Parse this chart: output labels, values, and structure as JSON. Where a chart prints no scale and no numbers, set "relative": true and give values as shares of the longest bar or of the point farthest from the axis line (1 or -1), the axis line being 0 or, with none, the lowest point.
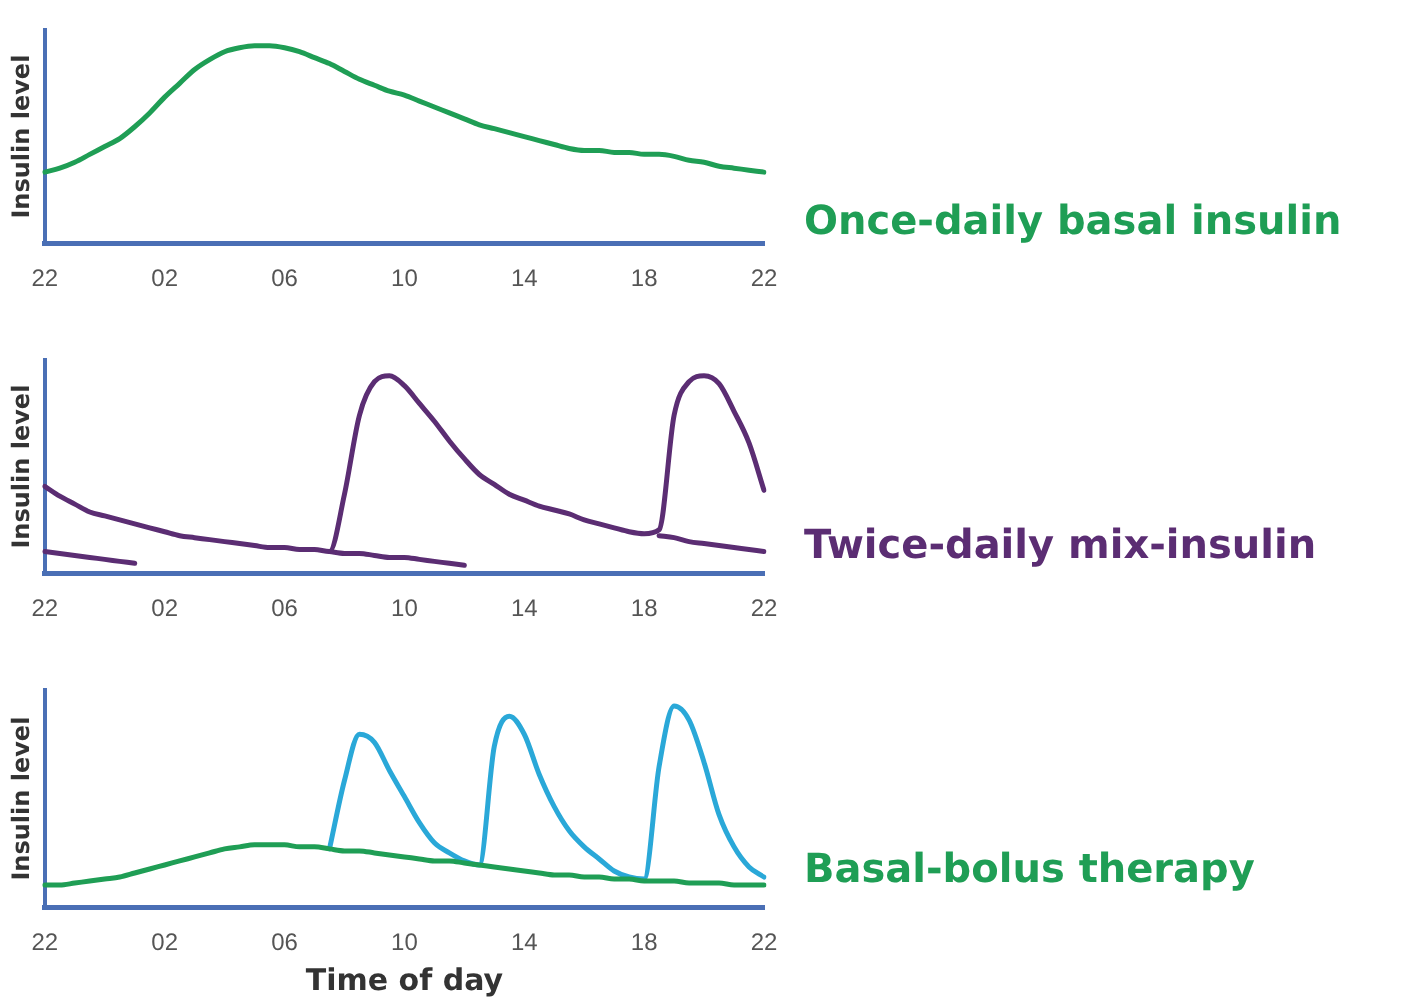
{
  "chart_data": [
    {
      "type": "line",
      "ylabel": "Insulin level",
      "relative": true,
      "legend": false,
      "grid": false,
      "marker": "none",
      "tick_labels": "x",
      "categories": [
        "22",
        null,
        null,
        null,
        null,
        null,
        null,
        null,
        "02",
        null,
        null,
        null,
        null,
        null,
        null,
        null,
        "06",
        null,
        null,
        null,
        null,
        null,
        null,
        null,
        "10",
        null,
        null,
        null,
        null,
        null,
        null,
        null,
        "14",
        null,
        null,
        null,
        null,
        null,
        null,
        null,
        "18",
        null,
        null,
        null,
        null,
        null,
        null,
        null,
        "22"
      ],
      "series": [
        {
          "name": "Once-daily basal insulin",
          "color": "#1f9e55",
          "values": [
            0.36,
            0.38,
            0.41,
            0.45,
            0.49,
            0.53,
            0.59,
            0.66,
            0.74,
            0.81,
            0.88,
            0.93,
            0.97,
            0.99,
            1,
            1,
            0.99,
            0.97,
            0.94,
            0.91,
            0.87,
            0.83,
            0.8,
            0.77,
            0.75,
            0.72,
            0.69,
            0.66,
            0.63,
            0.6,
            0.58,
            0.56,
            0.54,
            0.52,
            0.5,
            0.48,
            0.47,
            0.47,
            0.46,
            0.46,
            0.45,
            0.45,
            0.44,
            0.42,
            0.41,
            0.39,
            0.38,
            0.37,
            0.36
          ]
        }
      ]
    },
    {
      "type": "line",
      "ylabel": "Insulin level",
      "relative": true,
      "legend": false,
      "grid": false,
      "marker": "none",
      "tick_labels": "x",
      "categories": [
        "22",
        null,
        null,
        null,
        null,
        null,
        null,
        null,
        "02",
        null,
        null,
        null,
        null,
        null,
        null,
        null,
        "06",
        null,
        null,
        null,
        null,
        null,
        null,
        null,
        "10",
        null,
        null,
        null,
        null,
        null,
        null,
        null,
        "14",
        null,
        null,
        null,
        null,
        null,
        null,
        null,
        "18",
        null,
        null,
        null,
        null,
        null,
        null,
        null,
        "22"
      ],
      "series": [
        {
          "name": "Twice-daily mix-insulin",
          "color": "#5b2d73",
          "values": [
            0.44,
            0.39,
            0.35,
            0.31,
            0.29,
            0.27,
            0.25,
            0.23,
            0.21,
            0.19,
            0.18,
            0.17,
            0.16,
            0.15,
            0.14,
            0.13,
            0.13,
            0.12,
            0.12,
            0.11,
            0.4,
            0.8,
            0.97,
            1,
            0.95,
            0.86,
            0.77,
            0.67,
            0.58,
            0.5,
            0.45,
            0.4,
            0.37,
            0.34,
            0.32,
            0.3,
            0.27,
            0.25,
            0.23,
            0.21,
            0.2,
            0.22,
            0.8,
            0.97,
            1,
            0.96,
            0.82,
            0.66,
            0.42
          ]
        },
        {
          "color": "#5b2d73",
          "values": [
            0.11,
            0.1,
            0.09,
            0.08,
            0.07,
            0.06,
            0.05,
            null,
            null,
            null,
            null,
            null,
            null,
            null,
            null,
            null,
            null,
            null,
            null,
            0.11,
            0.1,
            0.1,
            0.09,
            0.08,
            0.08,
            0.07,
            0.06,
            0.05,
            0.04,
            null,
            null,
            null,
            null,
            null,
            null,
            null,
            null,
            null,
            null,
            null,
            null,
            0.19,
            0.18,
            0.16,
            0.15,
            0.14,
            0.13,
            0.12,
            0.11
          ]
        }
      ]
    },
    {
      "type": "line",
      "xlabel": "Time of day",
      "ylabel": "Insulin level",
      "relative": true,
      "legend": false,
      "grid": false,
      "marker": "none",
      "tick_labels": "x",
      "categories": [
        "22",
        null,
        null,
        null,
        null,
        null,
        null,
        null,
        "02",
        null,
        null,
        null,
        null,
        null,
        null,
        null,
        "06",
        null,
        null,
        null,
        null,
        null,
        null,
        null,
        "10",
        null,
        null,
        null,
        null,
        null,
        null,
        null,
        "14",
        null,
        null,
        null,
        null,
        null,
        null,
        null,
        "18",
        null,
        null,
        null,
        null,
        null,
        null,
        null,
        "22"
      ],
      "series": [
        {
          "name": "Basal-bolus therapy",
          "color": "#1f9e55",
          "values": [
            0.11,
            0.11,
            0.12,
            0.13,
            0.14,
            0.15,
            0.17,
            0.19,
            0.21,
            0.23,
            0.25,
            0.27,
            0.29,
            0.3,
            0.31,
            0.31,
            0.31,
            0.3,
            0.3,
            0.29,
            0.28,
            0.28,
            0.27,
            0.26,
            0.25,
            0.24,
            0.23,
            0.23,
            0.22,
            0.21,
            0.2,
            0.19,
            0.18,
            0.17,
            0.16,
            0.16,
            0.15,
            0.15,
            0.14,
            0.14,
            0.13,
            0.13,
            0.13,
            0.12,
            0.12,
            0.12,
            0.11,
            0.11,
            0.11
          ]
        },
        {
          "color": "#2aa8d8",
          "values": [
            null,
            null,
            null,
            null,
            null,
            null,
            null,
            null,
            null,
            null,
            null,
            null,
            null,
            null,
            null,
            null,
            null,
            null,
            null,
            0.29,
            0.63,
            0.86,
            0.82,
            0.68,
            0.55,
            0.42,
            0.32,
            0.27,
            0.23,
            0.21,
            0.8,
            0.95,
            0.86,
            0.66,
            0.5,
            0.38,
            0.3,
            0.24,
            0.18,
            0.15,
            0.14,
            0.7,
            1,
            0.93,
            0.72,
            0.46,
            0.3,
            0.2,
            0.15
          ]
        }
      ]
    }
  ]
}
